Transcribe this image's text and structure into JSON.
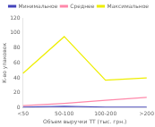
{
  "chart_data": {
    "type": "line",
    "categories": [
      "<50",
      "50-100",
      "100-200",
      ">200"
    ],
    "series": [
      {
        "name": "Минимальное",
        "color": "#4444bb",
        "values": [
          1,
          2,
          1,
          1
        ]
      },
      {
        "name": "Среднее",
        "color": "#ff88aa",
        "values": [
          3,
          6,
          10,
          14
        ]
      },
      {
        "name": "Максимальное",
        "color": "#eeee00",
        "values": [
          46,
          95,
          37,
          40
        ]
      }
    ],
    "xlabel": "Объем выручки ТТ (тыс. грн.)",
    "ylabel": "К-во упаковок",
    "ylim": [
      0,
      120
    ],
    "yticks": [
      0,
      20,
      40,
      60,
      80,
      100,
      120
    ],
    "grid": false,
    "legend": "upper right"
  }
}
